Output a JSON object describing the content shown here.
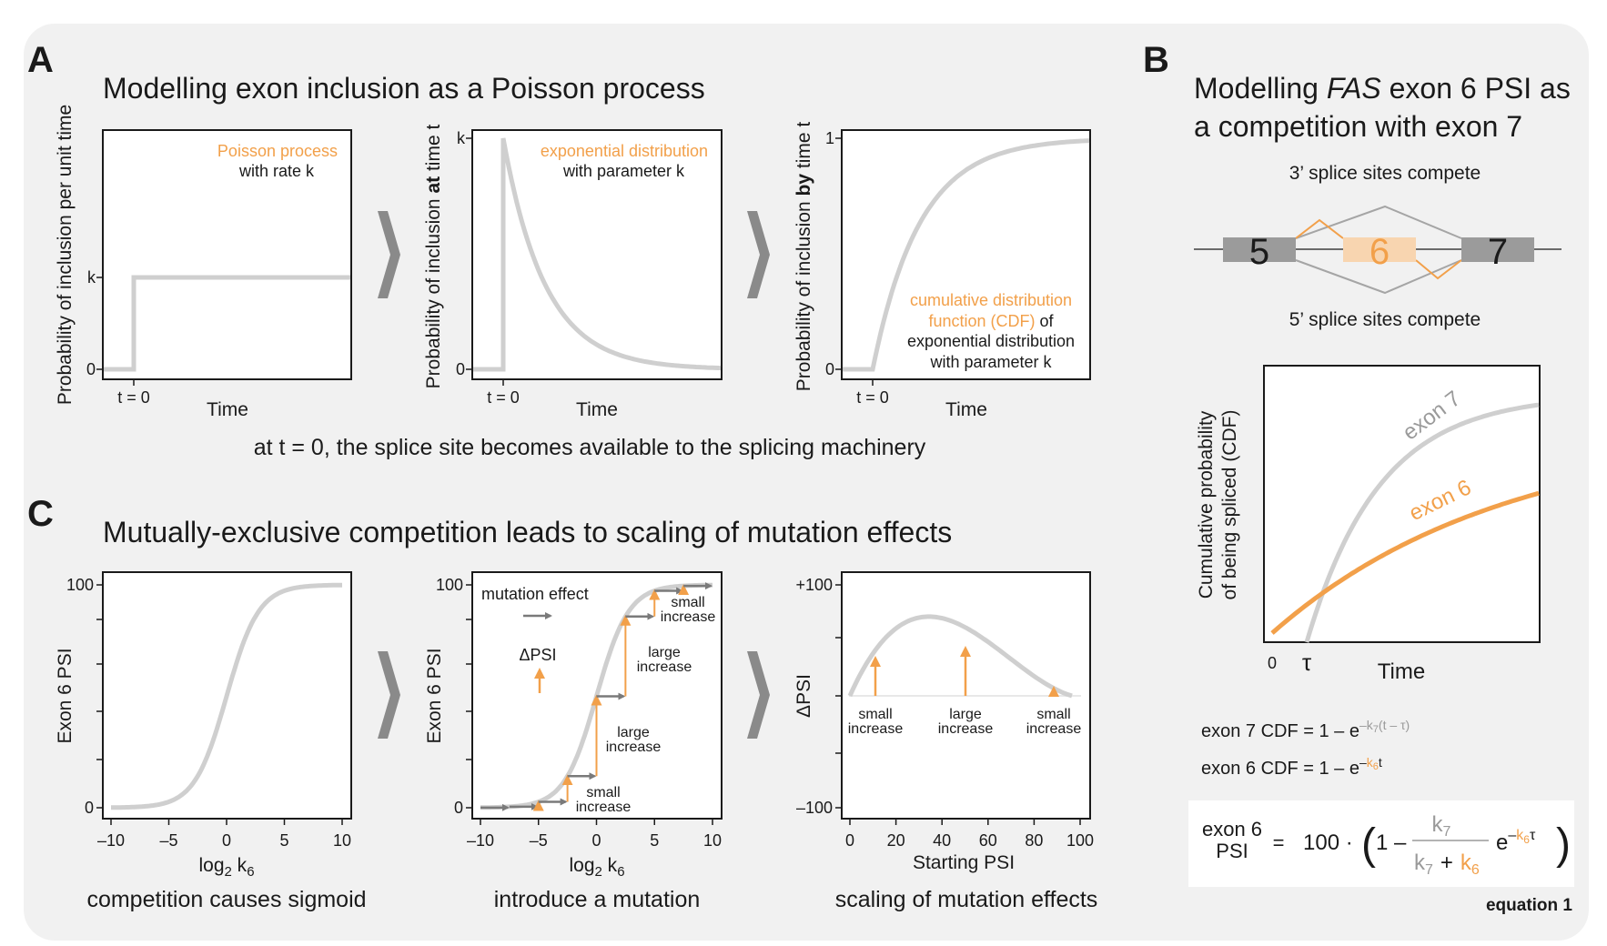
{
  "panel_a": {
    "label": "A",
    "title": "Modelling exon inclusion as a Poisson process",
    "plot1": {
      "ylabel": "Probability of inclusion per unit time",
      "xlabel": "Time",
      "ytick_k": "k",
      "ytick_0": "0",
      "xtick": "t = 0",
      "note_orange": "Poisson process",
      "note_black": "with rate k"
    },
    "plot2": {
      "ylabel_pre": "Probability of inclusion ",
      "ylabel_bold": "at",
      "ylabel_post": " time t",
      "xlabel": "Time",
      "ytick_k": "k",
      "ytick_0": "0",
      "xtick": "t = 0",
      "note_orange": "exponential distribution",
      "note_black": "with parameter k"
    },
    "plot3": {
      "ylabel_pre": "Probability of inclusion ",
      "ylabel_bold": "by",
      "ylabel_post": " time t",
      "xlabel": "Time",
      "ytick_1": "1",
      "ytick_0": "0",
      "xtick": "t = 0",
      "note_orange_1": "cumulative distribution",
      "note_orange_2": "function (CDF)",
      "note_black_2": " of",
      "note_black_3": "exponential distribution",
      "note_black_4": "with parameter k"
    },
    "caption": "at t = 0, the splice site becomes available to the splicing machinery"
  },
  "panel_b": {
    "label": "B",
    "title_pre": "Modelling ",
    "title_italic": "FAS",
    "title_post": " exon 6 PSI as",
    "title_line2": "a competition with exon 7",
    "top_note": "3’ splice sites compete",
    "bottom_note": "5’ splice sites compete",
    "exons": [
      "5",
      "6",
      "7"
    ],
    "plot": {
      "ylabel_1": "Cumulative probability",
      "ylabel_2": "of being spliced (CDF)",
      "xlabel": "Time",
      "xtick_0": "0",
      "xtick_tau": "τ",
      "exon7_label": "exon 7",
      "exon6_label": "exon 6"
    },
    "eq7_pre": "exon 7 CDF = 1 – e",
    "eq7_sup_pre": "–k",
    "eq7_sub": "7",
    "eq7_sup_post": "(t – τ)",
    "eq6_pre": "exon 6 CDF = 1 – e",
    "eq6_sup_pre": "–",
    "eq6_sup_k": "k",
    "eq6_sub": "6",
    "eq6_sup_post": "t",
    "eq_lhs_1": "exon 6",
    "eq_lhs_2": "PSI",
    "eq_eq": "=",
    "eq_100": "100 ·",
    "eq_paren_open": "(",
    "eq_one_minus": "1 –",
    "eq_num": "k",
    "eq_num_sub": "7",
    "eq_den_k7": "k",
    "eq_den_sub7": "7",
    "eq_den_plus": "+",
    "eq_den_k6": "k",
    "eq_den_sub6": "6",
    "eq_e": "e",
    "eq_exp_minus": "–",
    "eq_exp_k": "k",
    "eq_exp_sub": "6",
    "eq_exp_tau": "τ",
    "eq_paren_close": ")",
    "eq_label": "equation 1"
  },
  "panel_c": {
    "label": "C",
    "title": "Mutually-exclusive competition leads to scaling of mutation effects",
    "plot1": {
      "ylabel": "Exon 6 PSI",
      "xlabel_pre": "log",
      "xlabel_sub": "2",
      "xlabel_post": " k",
      "xlabel_sub2": "6",
      "yticks": [
        "0",
        "100"
      ],
      "xticks": [
        "–10",
        "–5",
        "0",
        "5",
        "10"
      ],
      "caption": "competition causes sigmoid"
    },
    "plot2": {
      "ylabel": "Exon 6 PSI",
      "xlabel_pre": "log",
      "xlabel_sub": "2",
      "xlabel_post": " k",
      "xlabel_sub2": "6",
      "yticks": [
        "0",
        "100"
      ],
      "xticks": [
        "–10",
        "–5",
        "0",
        "5",
        "10"
      ],
      "legend_mutation": "mutation effect",
      "legend_dpsi": "ΔPSI",
      "small_increase_top_1": "small",
      "small_increase_top_2": "increase",
      "large_increase_1a": "large",
      "large_increase_1b": "increase",
      "large_increase_2a": "large",
      "large_increase_2b": "increase",
      "small_increase_bot_1": "small",
      "small_increase_bot_2": "increase",
      "caption": "introduce a mutation"
    },
    "plot3": {
      "ylabel": "ΔPSI",
      "xlabel": "Starting PSI",
      "yticks": [
        "+100",
        "–100"
      ],
      "xticks": [
        "0",
        "20",
        "40",
        "60",
        "80",
        "100"
      ],
      "ann": [
        {
          "l1": "small",
          "l2": "increase"
        },
        {
          "l1": "large",
          "l2": "increase"
        },
        {
          "l1": "small",
          "l2": "increase"
        }
      ],
      "caption": "scaling of mutation effects"
    }
  },
  "colors": {
    "orange": "#f2a04a",
    "grey_curve": "#cfcfcf",
    "background": "#f1f1f1"
  }
}
